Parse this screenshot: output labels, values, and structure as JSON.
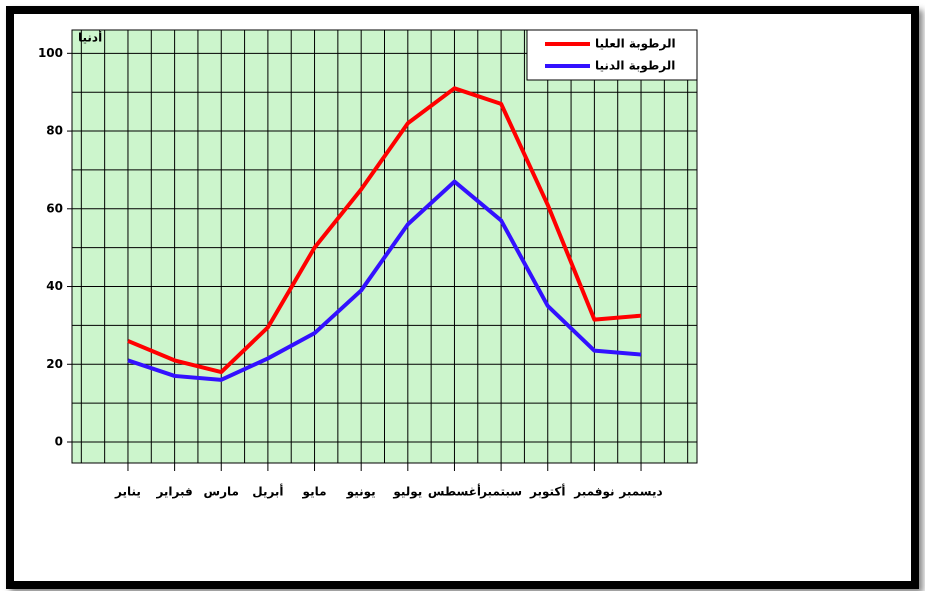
{
  "chart_data": {
    "type": "line",
    "annotation": "أدنيا",
    "categories": [
      "يناير",
      "فبراير",
      "مارس",
      "أبريل",
      "مايو",
      "يونيو",
      "يوليو",
      "أغسطس",
      "سبتمبر",
      "أكتوبر",
      "نوفمبر",
      "ديسمبر"
    ],
    "series": [
      {
        "name": "الرطوبة العليا",
        "color": "#ff0000",
        "values": [
          26,
          21,
          18,
          29.5,
          50,
          65,
          82,
          91,
          87,
          61,
          31.5,
          32.5
        ]
      },
      {
        "name": "الرطوبة الدنيا",
        "color": "#3311ff",
        "values": [
          21,
          17,
          16,
          21.5,
          28,
          39,
          56,
          67,
          57,
          35,
          23.5,
          22.5
        ]
      }
    ],
    "ylim": [
      -5.4,
      106
    ],
    "yticks": [
      0,
      20,
      40,
      60,
      80,
      100
    ],
    "yminor_ticks": [
      10,
      30,
      50,
      70,
      90
    ],
    "grid": true,
    "legend": "top-right",
    "plot_color": "#ccf5cc"
  }
}
